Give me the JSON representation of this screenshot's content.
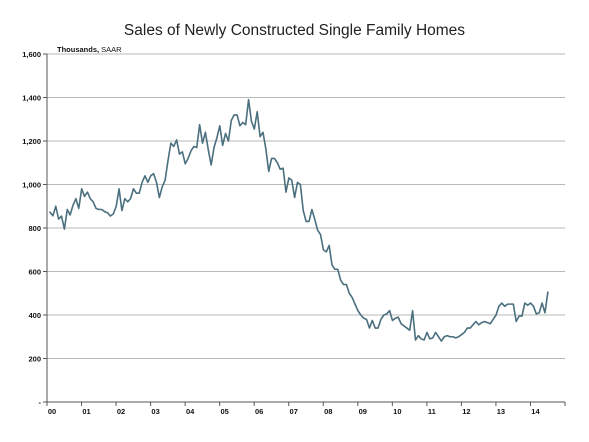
{
  "chart_data": {
    "type": "line",
    "title": "Sales of Newly Constructed Single Family Homes",
    "units_label_bold": "Thousands,",
    "units_label_rest": " SAAR",
    "ylim": [
      0,
      1600
    ],
    "y_ticks": [
      0,
      200,
      400,
      600,
      800,
      1000,
      1200,
      1400,
      1600
    ],
    "y_tick_labels": [
      "-",
      "200",
      "400",
      "600",
      "800",
      "1,000",
      "1,200",
      "1,400",
      "1,600"
    ],
    "x_tick_labels": [
      "00",
      "01",
      "02",
      "03",
      "04",
      "05",
      "06",
      "07",
      "08",
      "09",
      "10",
      "11",
      "12",
      "13",
      "14"
    ],
    "grid": true,
    "colors": {
      "line": "#4a6f7e",
      "grid": "#b8b8b8",
      "axis": "#555555"
    },
    "series": [
      {
        "start_year": 2000,
        "frequency": "monthly",
        "values": [
          873,
          856,
          900,
          841,
          855,
          795,
          885,
          860,
          905,
          935,
          890,
          980,
          945,
          965,
          935,
          920,
          890,
          885,
          885,
          875,
          870,
          855,
          865,
          900,
          980,
          880,
          935,
          920,
          935,
          980,
          960,
          960,
          1010,
          1040,
          1010,
          1040,
          1050,
          1010,
          940,
          990,
          1020,
          1110,
          1190,
          1175,
          1205,
          1140,
          1150,
          1095,
          1120,
          1155,
          1175,
          1170,
          1275,
          1190,
          1240,
          1160,
          1090,
          1170,
          1215,
          1270,
          1180,
          1235,
          1200,
          1295,
          1320,
          1320,
          1270,
          1285,
          1275,
          1390,
          1290,
          1255,
          1335,
          1220,
          1240,
          1165,
          1060,
          1120,
          1120,
          1100,
          1070,
          1075,
          965,
          1030,
          1020,
          940,
          1010,
          1000,
          880,
          830,
          830,
          885,
          840,
          790,
          770,
          700,
          690,
          720,
          630,
          610,
          610,
          560,
          540,
          540,
          500,
          480,
          450,
          420,
          400,
          385,
          380,
          340,
          375,
          340,
          340,
          380,
          400,
          405,
          420,
          375,
          385,
          390,
          360,
          350,
          340,
          330,
          420,
          285,
          305,
          290,
          285,
          320,
          290,
          295,
          320,
          300,
          280,
          300,
          305,
          300,
          300,
          295,
          300,
          310,
          320,
          340,
          340,
          355,
          370,
          355,
          365,
          370,
          365,
          360,
          380,
          400,
          440,
          455,
          440,
          450,
          450,
          450,
          370,
          395,
          395,
          455,
          445,
          455,
          440,
          405,
          410,
          455,
          410,
          505
        ]
      }
    ]
  }
}
